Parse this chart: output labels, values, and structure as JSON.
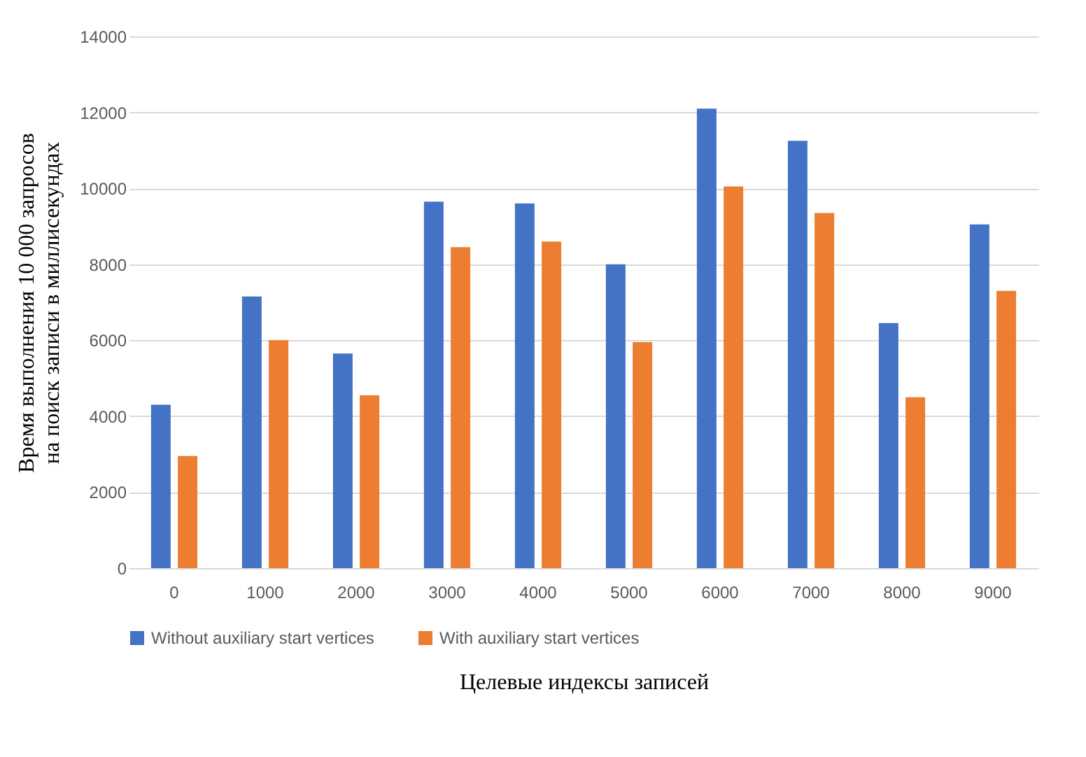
{
  "chart_data": {
    "type": "bar",
    "xlabel": "Целевые индексы записей",
    "ylabel": "Время выполнения 10 000 запросов\nна поиск записи в миллисекундах",
    "categories": [
      "0",
      "1000",
      "2000",
      "3000",
      "4000",
      "5000",
      "6000",
      "7000",
      "8000",
      "9000"
    ],
    "series": [
      {
        "name": "Without auxiliary start vertices",
        "color": "#4472c4",
        "values": [
          4300,
          7150,
          5650,
          9650,
          9600,
          8000,
          12100,
          11250,
          6450,
          9050
        ]
      },
      {
        "name": "With auxiliary start vertices",
        "color": "#ed7d31",
        "values": [
          2950,
          6000,
          4550,
          8450,
          8600,
          5950,
          10050,
          9350,
          4500,
          7300
        ]
      }
    ],
    "ylim": [
      0,
      14000
    ],
    "yticks": [
      0,
      2000,
      4000,
      6000,
      8000,
      10000,
      12000,
      14000
    ],
    "grid": "y",
    "legend": "bottom"
  }
}
